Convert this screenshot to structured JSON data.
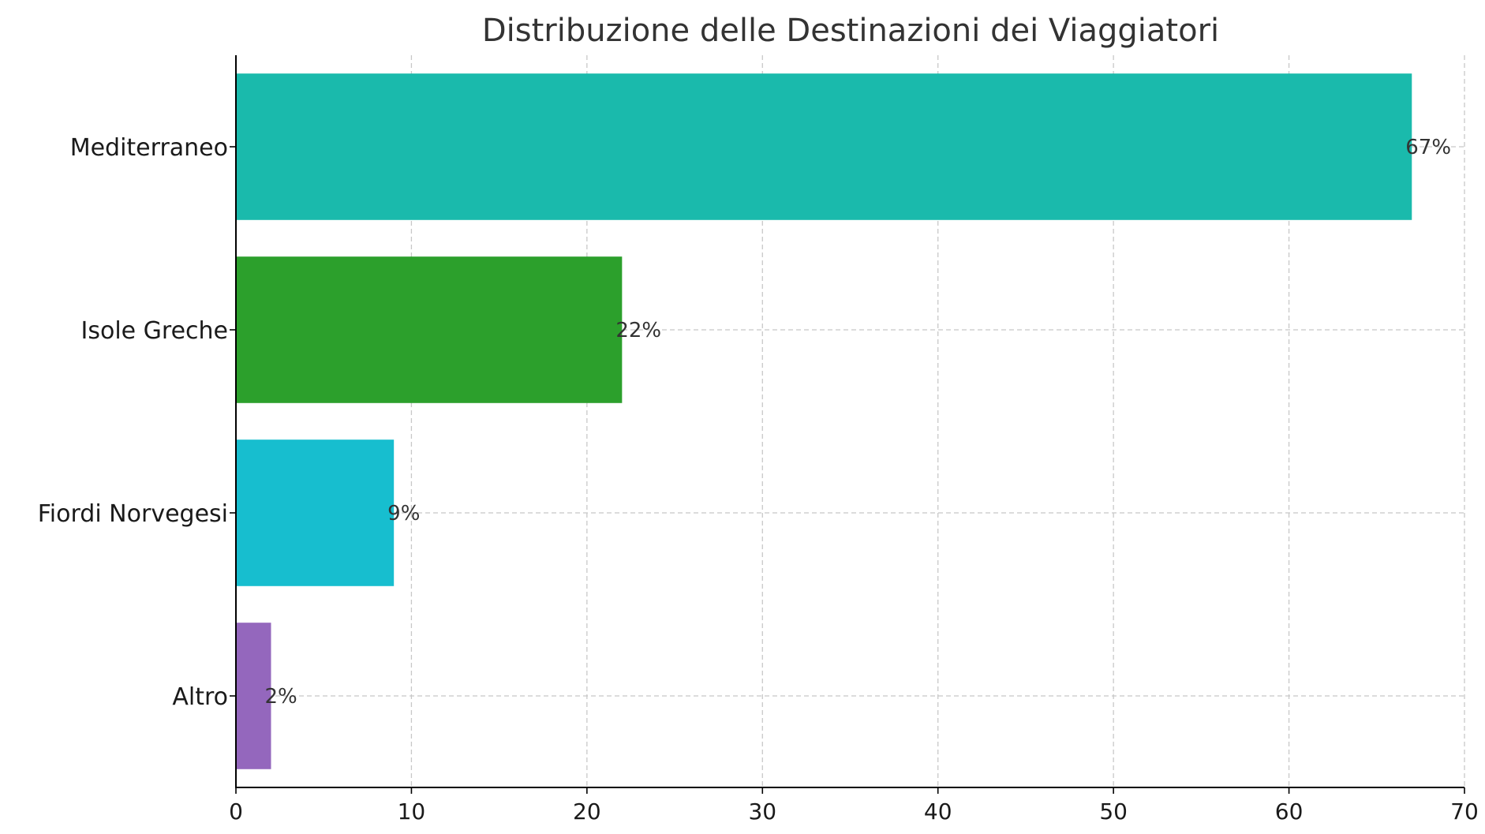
{
  "chart_data": {
    "type": "bar",
    "orientation": "horizontal",
    "title": "Distribuzione delle Destinazioni dei Viaggiatori",
    "xlabel": "",
    "ylabel": "",
    "categories": [
      "Mediterraneo",
      "Isole Greche",
      "Fiordi Norvegesi",
      "Altro"
    ],
    "values": [
      67,
      22,
      9,
      2
    ],
    "data_labels": [
      "67%",
      "22%",
      "9%",
      "2%"
    ],
    "colors": [
      "#1abaac",
      "#2ca02c",
      "#17becf",
      "#9467bd"
    ],
    "xlim": [
      0,
      70
    ],
    "xticks": [
      0,
      10,
      20,
      30,
      40,
      50,
      60,
      70
    ],
    "xtick_labels": [
      "0",
      "10",
      "20",
      "30",
      "40",
      "50",
      "60",
      "70"
    ],
    "grid": true
  }
}
